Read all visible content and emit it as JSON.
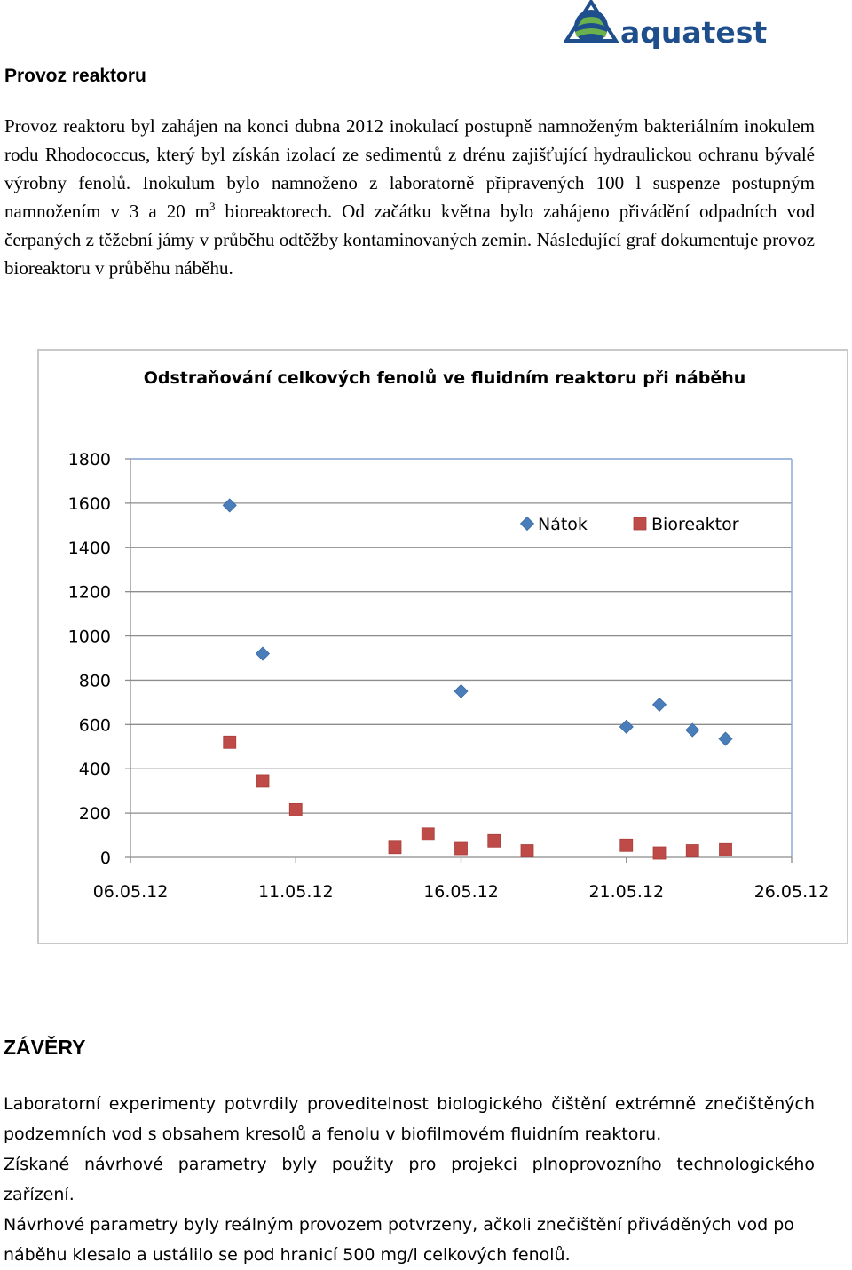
{
  "logo": {
    "text": "aquatest",
    "colors": {
      "blue": "#1f4e8c",
      "green": "#6ab04c"
    }
  },
  "section_heading": "Provoz reaktoru",
  "intro": {
    "text_before_sup": "Provoz reaktoru byl zahájen na konci dubna 2012 inokulací postupně namnoženým bakteriálním inokulem rodu Rhodococcus, který byl získán izolací ze sedimentů z drénu zajišťující hydraulickou ochranu bývalé výrobny fenolů. Inokulum bylo namnoženo z laboratorně připravených 100 l suspenze postupným namnožením v 3 a 20 m",
    "sup": "3",
    "text_after_sup": " bioreaktorech. Od začátku května bylo zahájeno přivádění odpadních vod čerpaných z těžební jámy v průběhu odtěžby kontaminovaných zemin. Následující graf dokumentuje provoz bioreaktoru v průběhu náběhu."
  },
  "chart_data": {
    "type": "scatter",
    "title": "Odstraňování  celkových fenolů ve fluidním reaktoru při náběhu",
    "x_tick_labels": [
      "06.05.12",
      "11.05.12",
      "16.05.12",
      "21.05.12",
      "26.05.12"
    ],
    "y_tick_labels": [
      "0",
      "200",
      "400",
      "600",
      "800",
      "1000",
      "1200",
      "1400",
      "1600",
      "1800"
    ],
    "xlim": [
      "06.05.12",
      "26.05.12"
    ],
    "ylim": [
      0,
      1800
    ],
    "grid": true,
    "legend_position": "top-right",
    "series": [
      {
        "name": "Nátok",
        "marker": "diamond",
        "color": "#4a7ebb",
        "x": [
          "09.05.12",
          "10.05.12",
          "16.05.12",
          "21.05.12",
          "22.05.12",
          "23.05.12",
          "24.05.12"
        ],
        "y": [
          1590,
          920,
          750,
          590,
          690,
          575,
          535
        ]
      },
      {
        "name": "Bioreaktor",
        "marker": "square",
        "color": "#be4b48",
        "x": [
          "09.05.12",
          "10.05.12",
          "11.05.12",
          "14.05.12",
          "15.05.12",
          "16.05.12",
          "17.05.12",
          "18.05.12",
          "21.05.12",
          "22.05.12",
          "23.05.12",
          "24.05.12"
        ],
        "y": [
          520,
          345,
          215,
          45,
          105,
          40,
          75,
          30,
          55,
          20,
          30,
          35
        ]
      }
    ]
  },
  "conclusion": {
    "heading": "ZÁVĚRY",
    "paragraphs": [
      "Laboratorní experimenty potvrdily proveditelnost biologického čištění extrémně znečištěných podzemních vod s obsahem kresolů a fenolu v biofilmovém fluidním reaktoru.",
      "Získané návrhové parametry byly použity pro projekci plnoprovozního technologického zařízení.",
      "Návrhové parametry byly reálným provozem potvrzeny, ačkoli znečištění přiváděných vod po náběhu klesalo a ustálilo se pod hranicí 500 mg/l celkových fenolů."
    ]
  }
}
